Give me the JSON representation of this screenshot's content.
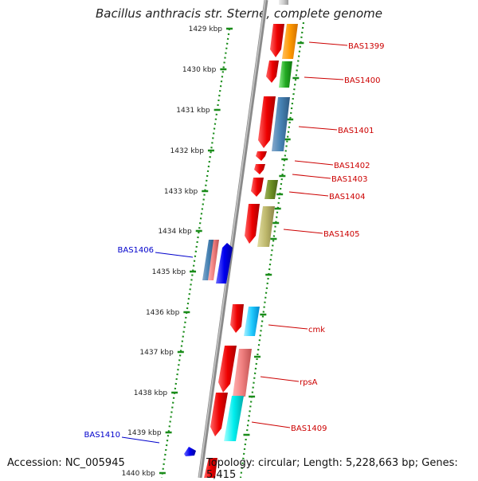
{
  "title": "Bacillus anthracis str. Sterne, complete genome",
  "accession": "Accession: NC_005945",
  "topology": "Topology: circular; Length: 5,228,663 bp; Genes: 5,415",
  "ticks": [
    "1429 kbp",
    "1430 kbp",
    "1431 kbp",
    "1432 kbp",
    "1433 kbp",
    "1434 kbp",
    "1435 kbp",
    "1436 kbp",
    "1437 kbp",
    "1438 kbp",
    "1439 kbp",
    "1440 kbp"
  ],
  "genes_right": [
    "BAS1399",
    "BAS1400",
    "BAS1401",
    "BAS1402",
    "BAS1403",
    "BAS1404",
    "BAS1405",
    "cmk",
    "rpsA",
    "BAS1409"
  ],
  "genes_left": [
    "BAS1406",
    "BAS1410"
  ],
  "colors": {
    "backbone": "#909090",
    "ruler": "#1a8c1a",
    "label_right": "#cc0000",
    "label_left": "#0000cc",
    "arrow_red": "#ee0000"
  }
}
